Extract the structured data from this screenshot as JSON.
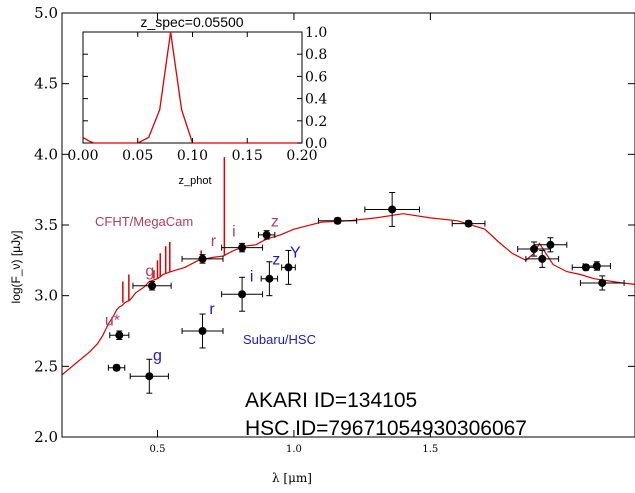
{
  "chart_data": {
    "type": "scatter",
    "xlabel": "λ [μm]",
    "ylabel": "log(F_ν) [μJy]",
    "xlim": [
      0.15,
      2.25
    ],
    "ylim": [
      2.0,
      5.0
    ],
    "xticks": [
      0.5,
      1.0,
      1.5
    ],
    "yticks": [
      2.0,
      2.5,
      3.0,
      3.5,
      4.0,
      4.5,
      5.0
    ],
    "xtick_labels": [
      "0.5",
      "1.0",
      "1.5"
    ],
    "ytick_labels": [
      "2.0",
      "2.5",
      "3.0",
      "3.5",
      "4.0",
      "4.5",
      "5.0"
    ],
    "grid": false,
    "colors": {
      "model": "#dd0000",
      "points": "#000000",
      "cfht_labels": "#b04060",
      "hsc_labels": "#1a1acc",
      "axes": "#000000"
    },
    "model_sed": {
      "x": [
        0.15,
        0.2,
        0.25,
        0.28,
        0.3,
        0.32,
        0.34,
        0.35,
        0.36,
        0.37,
        0.38,
        0.39,
        0.4,
        0.42,
        0.45,
        0.47,
        0.5,
        0.52,
        0.55,
        0.6,
        0.65,
        0.7,
        0.74,
        0.78,
        0.82,
        0.86,
        0.9,
        0.95,
        1.0,
        1.1,
        1.2,
        1.3,
        1.4,
        1.5,
        1.6,
        1.7,
        1.75,
        1.8,
        1.85,
        1.88,
        1.9,
        1.95,
        2.0,
        2.05,
        2.1,
        2.2,
        2.25
      ],
      "y": [
        2.44,
        2.52,
        2.6,
        2.66,
        2.72,
        2.8,
        2.86,
        2.9,
        2.92,
        2.93,
        2.95,
        2.96,
        2.97,
        3.02,
        3.06,
        3.1,
        3.12,
        3.15,
        3.17,
        3.2,
        3.25,
        3.27,
        3.28,
        3.32,
        3.35,
        3.36,
        3.4,
        3.43,
        3.47,
        3.52,
        3.53,
        3.55,
        3.58,
        3.55,
        3.53,
        3.47,
        3.38,
        3.3,
        3.25,
        3.3,
        3.37,
        3.22,
        3.17,
        3.15,
        3.12,
        3.09,
        3.08
      ]
    },
    "model_spikes": [
      {
        "x": 0.373,
        "y": 2.95,
        "peak": 3.1
      },
      {
        "x": 0.395,
        "y": 2.96,
        "peak": 3.15
      },
      {
        "x": 0.487,
        "y": 3.12,
        "peak": 3.18
      },
      {
        "x": 0.5,
        "y": 3.12,
        "peak": 3.25
      },
      {
        "x": 0.51,
        "y": 3.13,
        "peak": 3.3
      },
      {
        "x": 0.53,
        "y": 3.16,
        "peak": 3.35
      },
      {
        "x": 0.545,
        "y": 3.17,
        "peak": 3.38
      },
      {
        "x": 0.66,
        "y": 3.25,
        "peak": 3.32
      },
      {
        "x": 0.745,
        "y": 3.28,
        "peak": 3.98
      }
    ],
    "series": [
      {
        "name": "CFHT/MegaCam",
        "bands": [
          "u*",
          "g",
          "r",
          "i",
          "z"
        ],
        "x": [
          0.36,
          0.48,
          0.665,
          0.81,
          0.9
        ],
        "y": [
          2.72,
          3.07,
          3.26,
          3.34,
          3.43
        ],
        "xerr": [
          0.035,
          0.07,
          0.075,
          0.075,
          0.03
        ],
        "yerr": [
          0.03,
          0.03,
          0.03,
          0.03,
          0.03
        ]
      },
      {
        "name": "Subaru/HSC",
        "bands": [
          "g",
          "r",
          "i",
          "z",
          "Y"
        ],
        "x": [
          0.47,
          0.665,
          0.81,
          0.91,
          0.98
        ],
        "y": [
          2.43,
          2.75,
          3.01,
          3.12,
          3.2
        ],
        "xerr": [
          0.07,
          0.075,
          0.075,
          0.03,
          0.025
        ],
        "yerr": [
          0.12,
          0.12,
          0.12,
          0.12,
          0.12
        ]
      },
      {
        "name": "",
        "bands": [],
        "x": [
          0.35,
          1.16,
          1.36,
          1.64,
          1.88,
          1.91,
          1.94,
          2.07,
          2.11,
          2.13
        ],
        "y": [
          2.49,
          3.53,
          3.61,
          3.51,
          3.33,
          3.26,
          3.36,
          3.2,
          3.21,
          3.09
        ],
        "xerr": [
          0.03,
          0.07,
          0.1,
          0.06,
          0.06,
          0.06,
          0.06,
          0.05,
          0.05,
          0.08
        ],
        "yerr": [
          0.02,
          0.02,
          0.12,
          0.02,
          0.05,
          0.06,
          0.05,
          0.02,
          0.03,
          0.05
        ]
      }
    ],
    "band_labels_cfht": [
      {
        "text": "u*",
        "x": 0.335,
        "y": 2.79
      },
      {
        "text": "g",
        "x": 0.472,
        "y": 3.14
      },
      {
        "text": "r",
        "x": 0.705,
        "y": 3.35
      },
      {
        "text": "i",
        "x": 0.78,
        "y": 3.42
      },
      {
        "text": "z",
        "x": 0.93,
        "y": 3.49
      }
    ],
    "band_labels_hsc": [
      {
        "text": "g",
        "x": 0.5,
        "y": 2.54
      },
      {
        "text": "r",
        "x": 0.7,
        "y": 2.87
      },
      {
        "text": "i",
        "x": 0.845,
        "y": 3.1
      },
      {
        "text": "z",
        "x": 0.935,
        "y": 3.22
      },
      {
        "text": "Y",
        "x": 1.005,
        "y": 3.27
      }
    ],
    "annotations": {
      "cfht_label": "CFHT/MegaCam",
      "hsc_label": "Subaru/HSC",
      "akari_id": "AKARI ID=134105",
      "hsc_id": "HSC ID=79671054930306067"
    },
    "inset": {
      "type": "line",
      "title": "z_spec=0.05500",
      "xlabel": "z_phot",
      "xlim": [
        0.0,
        0.2
      ],
      "ylim": [
        0.0,
        1.0
      ],
      "xticks": [
        0.0,
        0.05,
        0.1,
        0.15,
        0.2
      ],
      "yticks": [
        0.0,
        0.2,
        0.4,
        0.6,
        0.8,
        1.0
      ],
      "xtick_labels": [
        "0.00",
        "0.05",
        "0.10",
        "0.15",
        "0.20"
      ],
      "ytick_labels": [
        "0.0",
        "0.2",
        "0.4",
        "0.6",
        "0.8",
        "1.0"
      ],
      "x": [
        0.0,
        0.005,
        0.01,
        0.05,
        0.06,
        0.07,
        0.08,
        0.09,
        0.1,
        0.15,
        0.2
      ],
      "y": [
        0.05,
        0.02,
        0.0,
        0.0,
        0.05,
        0.3,
        1.0,
        0.3,
        0.0,
        0.0,
        0.0
      ]
    }
  }
}
